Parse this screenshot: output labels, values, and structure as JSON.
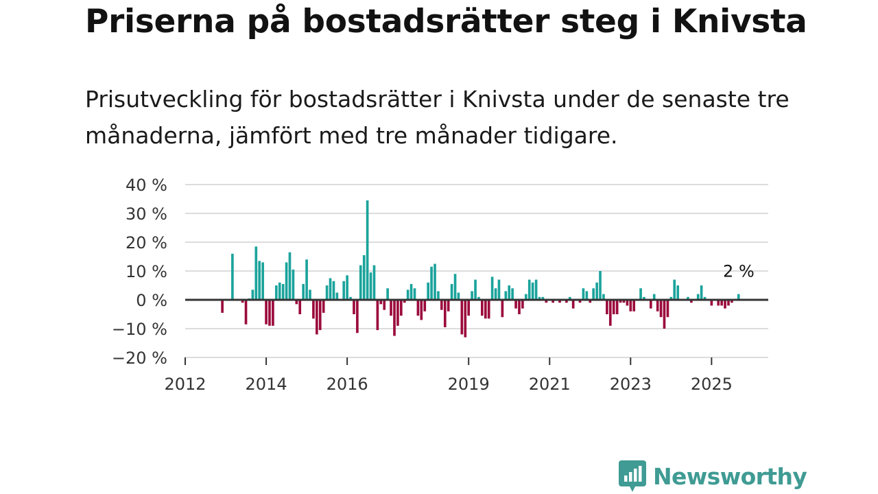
{
  "header": {
    "title": "Priserna på bostadsrätter steg i Knivsta",
    "subtitle": "Prisutveckling för bostadsrätter i Knivsta under de senaste tre månaderna, jämfört med tre månader tidigare."
  },
  "brand": {
    "name": "Newsworthy",
    "icon": "newsworthy-logo-icon",
    "color": "#3f9b93"
  },
  "colors": {
    "positive": "#1ba39c",
    "negative": "#9b0a3c",
    "grid": "#dcdcdc",
    "zero": "#333333"
  },
  "chart_data": {
    "type": "bar",
    "title": "Priserna på bostadsrätter steg i Knivsta",
    "xlabel": "",
    "ylabel": "",
    "ylim": [
      -20,
      40
    ],
    "xlim": [
      2012,
      2026.4
    ],
    "y_ticks": [
      40,
      30,
      20,
      10,
      0,
      -10,
      -20
    ],
    "y_tick_labels": [
      "40 %",
      "30 %",
      "20 %",
      "10 %",
      "0 %",
      "−10 %",
      "−20 %"
    ],
    "x_ticks": [
      2012,
      2014,
      2016,
      2019,
      2021,
      2023,
      2025
    ],
    "x_tick_labels": [
      "2012",
      "2014",
      "2016",
      "2019",
      "2021",
      "2023",
      "2025"
    ],
    "bar_width_years": 0.062,
    "annotation": {
      "text": "2 %",
      "x": 2025.67,
      "y": 2
    },
    "x": [
      2012.917,
      2013.0,
      2013.083,
      2013.167,
      2013.25,
      2013.333,
      2013.417,
      2013.5,
      2013.583,
      2013.667,
      2013.75,
      2013.833,
      2013.917,
      2014.0,
      2014.083,
      2014.167,
      2014.25,
      2014.333,
      2014.417,
      2014.5,
      2014.583,
      2014.667,
      2014.75,
      2014.833,
      2014.917,
      2015.0,
      2015.083,
      2015.167,
      2015.25,
      2015.333,
      2015.417,
      2015.5,
      2015.583,
      2015.667,
      2015.75,
      2015.833,
      2015.917,
      2016.0,
      2016.083,
      2016.167,
      2016.25,
      2016.333,
      2016.417,
      2016.5,
      2016.583,
      2016.667,
      2016.75,
      2016.833,
      2016.917,
      2017.0,
      2017.083,
      2017.167,
      2017.25,
      2017.333,
      2017.417,
      2017.5,
      2017.583,
      2017.667,
      2017.75,
      2017.833,
      2017.917,
      2018.0,
      2018.083,
      2018.167,
      2018.25,
      2018.333,
      2018.417,
      2018.5,
      2018.583,
      2018.667,
      2018.75,
      2018.833,
      2018.917,
      2019.0,
      2019.083,
      2019.167,
      2019.25,
      2019.333,
      2019.417,
      2019.5,
      2019.583,
      2019.667,
      2019.75,
      2019.833,
      2019.917,
      2020.0,
      2020.083,
      2020.167,
      2020.25,
      2020.333,
      2020.417,
      2020.5,
      2020.583,
      2020.667,
      2020.75,
      2020.833,
      2020.917,
      2021.0,
      2021.083,
      2021.167,
      2021.25,
      2021.333,
      2021.417,
      2021.5,
      2021.583,
      2021.667,
      2021.75,
      2021.833,
      2021.917,
      2022.0,
      2022.083,
      2022.167,
      2022.25,
      2022.333,
      2022.417,
      2022.5,
      2022.583,
      2022.667,
      2022.75,
      2022.833,
      2022.917,
      2023.0,
      2023.083,
      2023.167,
      2023.25,
      2023.333,
      2023.417,
      2023.5,
      2023.583,
      2023.667,
      2023.75,
      2023.833,
      2023.917,
      2024.0,
      2024.083,
      2024.167,
      2024.25,
      2024.333,
      2024.417,
      2024.5,
      2024.583,
      2024.667,
      2024.75,
      2024.833,
      2024.917,
      2025.0,
      2025.083,
      2025.167,
      2025.25,
      2025.333,
      2025.417,
      2025.5,
      2025.583,
      2025.667
    ],
    "values": [
      -4.5,
      0,
      0,
      16,
      0,
      0,
      -1,
      -8.5,
      0.5,
      3.5,
      18.5,
      13.5,
      13,
      -8.5,
      -9,
      -9,
      5,
      6,
      5.5,
      13,
      16.5,
      10.5,
      -1.5,
      -5,
      5.5,
      14,
      3.5,
      -6.5,
      -12,
      -10.5,
      -4.5,
      5,
      7.5,
      6.5,
      2.5,
      0,
      6.5,
      8.5,
      1,
      -5,
      -11.5,
      12,
      15.5,
      34.5,
      9.5,
      12,
      -10.5,
      -1.5,
      -3.5,
      4,
      -5.5,
      -12.5,
      -9,
      -5.5,
      -1,
      3.5,
      5.5,
      4,
      -5.5,
      -7,
      -4,
      6,
      11.5,
      12.5,
      3,
      -3.5,
      -9.5,
      -4,
      5.5,
      9,
      2.5,
      -12,
      -13,
      -5.5,
      3,
      7,
      1,
      -5.5,
      -6.5,
      -6.5,
      8,
      4,
      7,
      -6,
      3,
      5,
      4,
      -3,
      -5,
      -3,
      2,
      7,
      6,
      7,
      1,
      1,
      -1,
      0,
      -1,
      0,
      -1,
      0,
      -1,
      1,
      -3,
      0,
      -1,
      4,
      3,
      -1,
      4,
      6,
      10,
      2,
      -5,
      -9,
      -5,
      -5,
      -1,
      -1,
      -2,
      -4,
      -4,
      0,
      4,
      1,
      0,
      -3,
      2,
      -4,
      -6,
      -10,
      -6,
      1,
      7,
      5,
      0,
      0,
      1,
      -1,
      0,
      2,
      5,
      1,
      0,
      -2,
      0,
      -2,
      -2,
      -3,
      -2,
      -1,
      0,
      2
    ]
  }
}
